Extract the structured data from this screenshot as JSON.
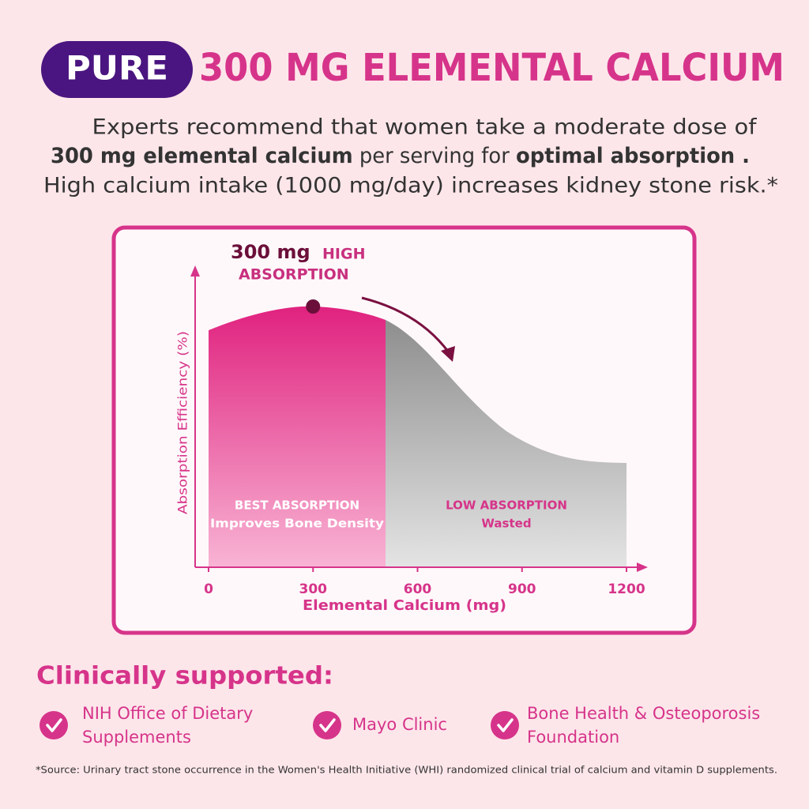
{
  "header": {
    "badge": "PURE",
    "title": "300 MG ELEMENTAL CALCIUM"
  },
  "intro": {
    "line1": "Experts recommend that women take a moderate dose of",
    "line2": [
      "300 mg elemental calcium",
      " per serving for ",
      "optimal absorption ."
    ],
    "line3": "High calcium intake (1000 mg/day) increases kidney stone risk.*"
  },
  "chart_data": {
    "type": "area",
    "annotation": {
      "value": "300 mg",
      "label": [
        "HIGH",
        "ABSORPTION"
      ]
    },
    "y_label": "Absorption Efficiency (%)",
    "x_label": "Elemental Calcium (mg)",
    "xlim": [
      0,
      1200
    ],
    "xticks": [
      0,
      300,
      600,
      900,
      1200
    ],
    "highlight_x": 300,
    "regions": [
      {
        "title": "BEST ABSORPTION",
        "subtitle": "Improves Bone Density"
      },
      {
        "title": "LOW ABSORPTION",
        "subtitle": "Wasted"
      }
    ]
  },
  "support": {
    "title": "Clinically supported:",
    "items": [
      [
        "NIH  Office of Dietary",
        "Supplements"
      ],
      [
        "Mayo Clinic"
      ],
      [
        "Bone Health & Osteoporosis",
        "Foundation"
      ]
    ]
  },
  "footnote": "*Source: Urinary tract stone occurrence in the Women's Health Initiative (WHI) randomized clinical trial of calcium and vitamin D supplements."
}
